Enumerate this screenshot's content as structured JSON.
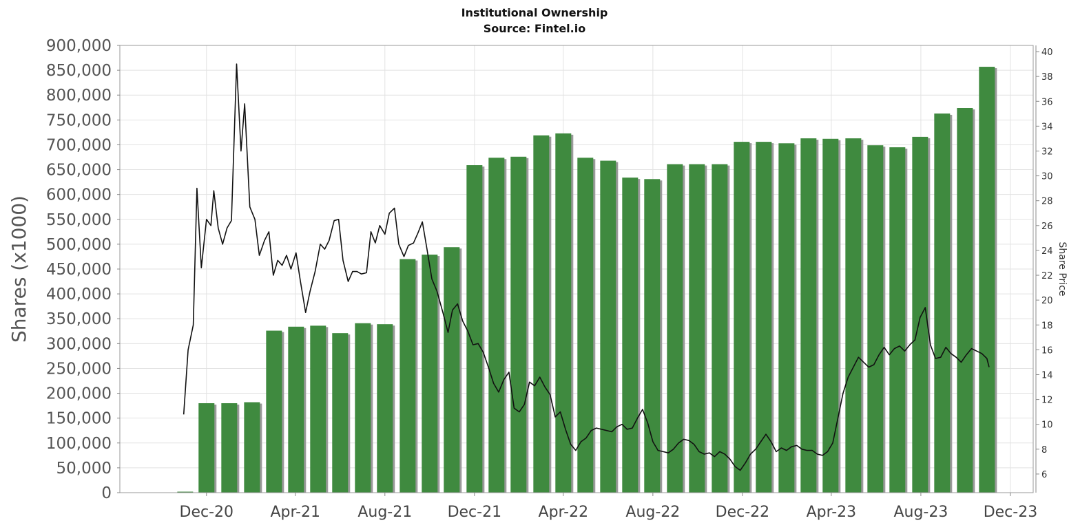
{
  "chart_data": {
    "type": "bar",
    "title": "Institutional Ownership",
    "source": "Source: Fintel.io",
    "ylabel": "Shares (x1000)",
    "y2label": "Share Price",
    "ylim": [
      0,
      900000
    ],
    "y2lim": [
      4.5,
      40.5
    ],
    "yticks": [
      "0",
      "50,000",
      "100,000",
      "150,000",
      "200,000",
      "250,000",
      "300,000",
      "350,000",
      "400,000",
      "450,000",
      "500,000",
      "550,000",
      "600,000",
      "650,000",
      "700,000",
      "750,000",
      "800,000",
      "850,000",
      "900,000"
    ],
    "y2ticks": [
      6,
      8,
      10,
      12,
      14,
      16,
      18,
      20,
      22,
      24,
      26,
      28,
      30,
      32,
      34,
      36,
      38,
      40
    ],
    "xticks": [
      {
        "label": "Dec-20",
        "date": "2020-12-01"
      },
      {
        "label": "Apr-21",
        "date": "2021-04-01"
      },
      {
        "label": "Aug-21",
        "date": "2021-08-01"
      },
      {
        "label": "Dec-21",
        "date": "2021-12-01"
      },
      {
        "label": "Apr-22",
        "date": "2022-04-01"
      },
      {
        "label": "Aug-22",
        "date": "2022-08-01"
      },
      {
        "label": "Dec-22",
        "date": "2022-12-01"
      },
      {
        "label": "Apr-23",
        "date": "2023-04-01"
      },
      {
        "label": "Aug-23",
        "date": "2023-08-01"
      },
      {
        "label": "Dec-23",
        "date": "2023-12-01"
      }
    ],
    "xlim": [
      "2020-08-05",
      "2024-01-01"
    ],
    "bar_color": "#3f8a3f",
    "line_color": "#111111",
    "grid": true,
    "bars": [
      {
        "date": "2020-11-02",
        "value": 2000
      },
      {
        "date": "2020-12-01",
        "value": 180000
      },
      {
        "date": "2021-01-01",
        "value": 180000
      },
      {
        "date": "2021-02-01",
        "value": 182000
      },
      {
        "date": "2021-03-03",
        "value": 326000
      },
      {
        "date": "2021-04-02",
        "value": 334000
      },
      {
        "date": "2021-05-02",
        "value": 336000
      },
      {
        "date": "2021-06-01",
        "value": 321000
      },
      {
        "date": "2021-07-02",
        "value": 341000
      },
      {
        "date": "2021-08-01",
        "value": 339000
      },
      {
        "date": "2021-09-01",
        "value": 470000
      },
      {
        "date": "2021-10-01",
        "value": 479000
      },
      {
        "date": "2021-10-31",
        "value": 494000
      },
      {
        "date": "2021-12-01",
        "value": 659000
      },
      {
        "date": "2021-12-31",
        "value": 674000
      },
      {
        "date": "2022-01-30",
        "value": 676000
      },
      {
        "date": "2022-03-02",
        "value": 719000
      },
      {
        "date": "2022-04-01",
        "value": 723000
      },
      {
        "date": "2022-05-01",
        "value": 674000
      },
      {
        "date": "2022-06-01",
        "value": 668000
      },
      {
        "date": "2022-07-01",
        "value": 634000
      },
      {
        "date": "2022-07-31",
        "value": 631000
      },
      {
        "date": "2022-08-31",
        "value": 661000
      },
      {
        "date": "2022-09-30",
        "value": 661000
      },
      {
        "date": "2022-10-31",
        "value": 661000
      },
      {
        "date": "2022-11-30",
        "value": 706000
      },
      {
        "date": "2022-12-30",
        "value": 706000
      },
      {
        "date": "2023-01-30",
        "value": 703000
      },
      {
        "date": "2023-03-01",
        "value": 713000
      },
      {
        "date": "2023-03-31",
        "value": 712000
      },
      {
        "date": "2023-05-01",
        "value": 713000
      },
      {
        "date": "2023-05-31",
        "value": 699000
      },
      {
        "date": "2023-06-30",
        "value": 695000
      },
      {
        "date": "2023-07-31",
        "value": 716000
      },
      {
        "date": "2023-08-30",
        "value": 763000
      },
      {
        "date": "2023-09-30",
        "value": 774000
      },
      {
        "date": "2023-10-30",
        "value": 857000
      }
    ],
    "price_line": [
      [
        "2020-10-31",
        10.8
      ],
      [
        "2020-11-06",
        16.0
      ],
      [
        "2020-11-13",
        18.0
      ],
      [
        "2020-11-18",
        29.0
      ],
      [
        "2020-11-24",
        22.6
      ],
      [
        "2020-12-01",
        26.5
      ],
      [
        "2020-12-07",
        26.0
      ],
      [
        "2020-12-11",
        28.8
      ],
      [
        "2020-12-17",
        25.8
      ],
      [
        "2020-12-23",
        24.5
      ],
      [
        "2020-12-29",
        25.8
      ],
      [
        "2021-01-04",
        26.4
      ],
      [
        "2021-01-11",
        39.0
      ],
      [
        "2021-01-17",
        32.0
      ],
      [
        "2021-01-22",
        35.8
      ],
      [
        "2021-01-29",
        27.5
      ],
      [
        "2021-02-05",
        26.5
      ],
      [
        "2021-02-11",
        23.6
      ],
      [
        "2021-02-18",
        24.8
      ],
      [
        "2021-02-24",
        25.5
      ],
      [
        "2021-03-02",
        22.0
      ],
      [
        "2021-03-08",
        23.2
      ],
      [
        "2021-03-14",
        22.8
      ],
      [
        "2021-03-20",
        23.6
      ],
      [
        "2021-03-26",
        22.5
      ],
      [
        "2021-04-02",
        23.8
      ],
      [
        "2021-04-08",
        21.5
      ],
      [
        "2021-04-15",
        19.0
      ],
      [
        "2021-04-21",
        20.7
      ],
      [
        "2021-04-28",
        22.3
      ],
      [
        "2021-05-05",
        24.5
      ],
      [
        "2021-05-11",
        24.1
      ],
      [
        "2021-05-17",
        24.8
      ],
      [
        "2021-05-24",
        26.4
      ],
      [
        "2021-05-30",
        26.5
      ],
      [
        "2021-06-05",
        23.2
      ],
      [
        "2021-06-12",
        21.5
      ],
      [
        "2021-06-18",
        22.3
      ],
      [
        "2021-06-24",
        22.3
      ],
      [
        "2021-06-30",
        22.1
      ],
      [
        "2021-07-07",
        22.2
      ],
      [
        "2021-07-13",
        25.5
      ],
      [
        "2021-07-19",
        24.6
      ],
      [
        "2021-07-25",
        26.0
      ],
      [
        "2021-08-01",
        25.3
      ],
      [
        "2021-08-07",
        27.0
      ],
      [
        "2021-08-14",
        27.4
      ],
      [
        "2021-08-20",
        24.5
      ],
      [
        "2021-08-27",
        23.5
      ],
      [
        "2021-09-02",
        24.4
      ],
      [
        "2021-09-09",
        24.6
      ],
      [
        "2021-09-15",
        25.4
      ],
      [
        "2021-09-21",
        26.3
      ],
      [
        "2021-09-27",
        24.2
      ],
      [
        "2021-10-04",
        21.7
      ],
      [
        "2021-10-11",
        20.7
      ],
      [
        "2021-10-19",
        19.0
      ],
      [
        "2021-10-26",
        17.4
      ],
      [
        "2021-11-01",
        19.2
      ],
      [
        "2021-11-08",
        19.7
      ],
      [
        "2021-11-15",
        18.3
      ],
      [
        "2021-11-22",
        17.5
      ],
      [
        "2021-11-29",
        16.4
      ],
      [
        "2021-12-06",
        16.5
      ],
      [
        "2021-12-13",
        15.8
      ],
      [
        "2021-12-20",
        14.6
      ],
      [
        "2021-12-27",
        13.3
      ],
      [
        "2022-01-03",
        12.6
      ],
      [
        "2022-01-10",
        13.6
      ],
      [
        "2022-01-17",
        14.2
      ],
      [
        "2022-01-24",
        11.3
      ],
      [
        "2022-01-31",
        11.0
      ],
      [
        "2022-02-07",
        11.6
      ],
      [
        "2022-02-14",
        13.4
      ],
      [
        "2022-02-21",
        13.1
      ],
      [
        "2022-02-28",
        13.8
      ],
      [
        "2022-03-07",
        13.0
      ],
      [
        "2022-03-14",
        12.4
      ],
      [
        "2022-03-21",
        10.6
      ],
      [
        "2022-03-28",
        11.0
      ],
      [
        "2022-04-04",
        9.6
      ],
      [
        "2022-04-11",
        8.4
      ],
      [
        "2022-04-18",
        7.9
      ],
      [
        "2022-04-25",
        8.6
      ],
      [
        "2022-05-02",
        8.9
      ],
      [
        "2022-05-09",
        9.5
      ],
      [
        "2022-05-16",
        9.7
      ],
      [
        "2022-05-23",
        9.6
      ],
      [
        "2022-05-30",
        9.5
      ],
      [
        "2022-06-06",
        9.4
      ],
      [
        "2022-06-13",
        9.8
      ],
      [
        "2022-06-20",
        10.0
      ],
      [
        "2022-06-27",
        9.6
      ],
      [
        "2022-07-04",
        9.7
      ],
      [
        "2022-07-11",
        10.5
      ],
      [
        "2022-07-18",
        11.2
      ],
      [
        "2022-07-25",
        10.1
      ],
      [
        "2022-08-01",
        8.6
      ],
      [
        "2022-08-08",
        7.9
      ],
      [
        "2022-08-15",
        7.8
      ],
      [
        "2022-08-22",
        7.7
      ],
      [
        "2022-08-29",
        8.0
      ],
      [
        "2022-09-05",
        8.5
      ],
      [
        "2022-09-12",
        8.8
      ],
      [
        "2022-09-19",
        8.7
      ],
      [
        "2022-09-26",
        8.4
      ],
      [
        "2022-10-03",
        7.8
      ],
      [
        "2022-10-10",
        7.6
      ],
      [
        "2022-10-17",
        7.7
      ],
      [
        "2022-10-24",
        7.4
      ],
      [
        "2022-10-31",
        7.8
      ],
      [
        "2022-11-07",
        7.6
      ],
      [
        "2022-11-14",
        7.2
      ],
      [
        "2022-11-21",
        6.6
      ],
      [
        "2022-11-28",
        6.3
      ],
      [
        "2022-12-05",
        6.9
      ],
      [
        "2022-12-12",
        7.6
      ],
      [
        "2022-12-19",
        8.0
      ],
      [
        "2022-12-26",
        8.6
      ],
      [
        "2023-01-02",
        9.2
      ],
      [
        "2023-01-09",
        8.6
      ],
      [
        "2023-01-16",
        7.8
      ],
      [
        "2023-01-23",
        8.1
      ],
      [
        "2023-01-30",
        7.9
      ],
      [
        "2023-02-06",
        8.2
      ],
      [
        "2023-02-13",
        8.3
      ],
      [
        "2023-02-20",
        8.0
      ],
      [
        "2023-02-27",
        7.9
      ],
      [
        "2023-03-06",
        7.9
      ],
      [
        "2023-03-13",
        7.6
      ],
      [
        "2023-03-20",
        7.5
      ],
      [
        "2023-03-27",
        7.8
      ],
      [
        "2023-04-03",
        8.5
      ],
      [
        "2023-04-10",
        10.5
      ],
      [
        "2023-04-17",
        12.5
      ],
      [
        "2023-04-24",
        13.8
      ],
      [
        "2023-05-01",
        14.6
      ],
      [
        "2023-05-08",
        15.4
      ],
      [
        "2023-05-15",
        15.0
      ],
      [
        "2023-05-22",
        14.6
      ],
      [
        "2023-05-29",
        14.8
      ],
      [
        "2023-06-05",
        15.6
      ],
      [
        "2023-06-12",
        16.2
      ],
      [
        "2023-06-19",
        15.6
      ],
      [
        "2023-06-26",
        16.1
      ],
      [
        "2023-07-03",
        16.3
      ],
      [
        "2023-07-10",
        15.9
      ],
      [
        "2023-07-17",
        16.4
      ],
      [
        "2023-07-24",
        16.8
      ],
      [
        "2023-07-31",
        18.6
      ],
      [
        "2023-08-07",
        19.4
      ],
      [
        "2023-08-14",
        16.4
      ],
      [
        "2023-08-21",
        15.3
      ],
      [
        "2023-08-28",
        15.4
      ],
      [
        "2023-09-04",
        16.2
      ],
      [
        "2023-09-11",
        15.7
      ],
      [
        "2023-09-18",
        15.4
      ],
      [
        "2023-09-25",
        15.0
      ],
      [
        "2023-10-02",
        15.6
      ],
      [
        "2023-10-09",
        16.1
      ],
      [
        "2023-10-16",
        15.9
      ],
      [
        "2023-10-23",
        15.7
      ],
      [
        "2023-10-30",
        15.3
      ],
      [
        "2023-11-02",
        14.6
      ]
    ]
  }
}
